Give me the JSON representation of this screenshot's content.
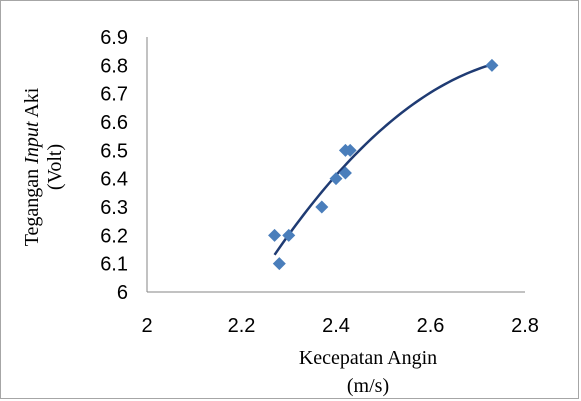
{
  "chart_data": {
    "type": "scatter",
    "title": "",
    "xlabel_line1": "Kecepatan Angin",
    "xlabel_line2": "(m/s)",
    "ylabel_line1_pre": "Tegangan ",
    "ylabel_line1_italic": "Input",
    "ylabel_line1_post": " Aki",
    "ylabel_line2": "(Volt)",
    "xlim": [
      2,
      2.8
    ],
    "ylim": [
      6,
      6.9
    ],
    "x_ticks": [
      "2",
      "2.2",
      "2.4",
      "2.6",
      "2.8"
    ],
    "y_ticks": [
      "6",
      "6.1",
      "6.2",
      "6.3",
      "6.4",
      "6.5",
      "6.6",
      "6.7",
      "6.8",
      "6.9"
    ],
    "x_tick_values": [
      2,
      2.2,
      2.4,
      2.6,
      2.8
    ],
    "y_tick_values": [
      6,
      6.1,
      6.2,
      6.3,
      6.4,
      6.5,
      6.6,
      6.7,
      6.8,
      6.9
    ],
    "points": [
      {
        "x": 2.27,
        "y": 6.2
      },
      {
        "x": 2.28,
        "y": 6.1
      },
      {
        "x": 2.3,
        "y": 6.2
      },
      {
        "x": 2.37,
        "y": 6.3
      },
      {
        "x": 2.4,
        "y": 6.4
      },
      {
        "x": 2.42,
        "y": 6.5
      },
      {
        "x": 2.42,
        "y": 6.42
      },
      {
        "x": 2.43,
        "y": 6.5
      },
      {
        "x": 2.73,
        "y": 6.8
      }
    ],
    "trendline": {
      "type": "polynomial",
      "order": 2,
      "x_range": [
        2.27,
        2.73
      ]
    },
    "marker_color": "#4a7ebb",
    "trendline_color": "#1f3b73",
    "axis_color": "#868686",
    "grid": false,
    "legend": "none"
  }
}
